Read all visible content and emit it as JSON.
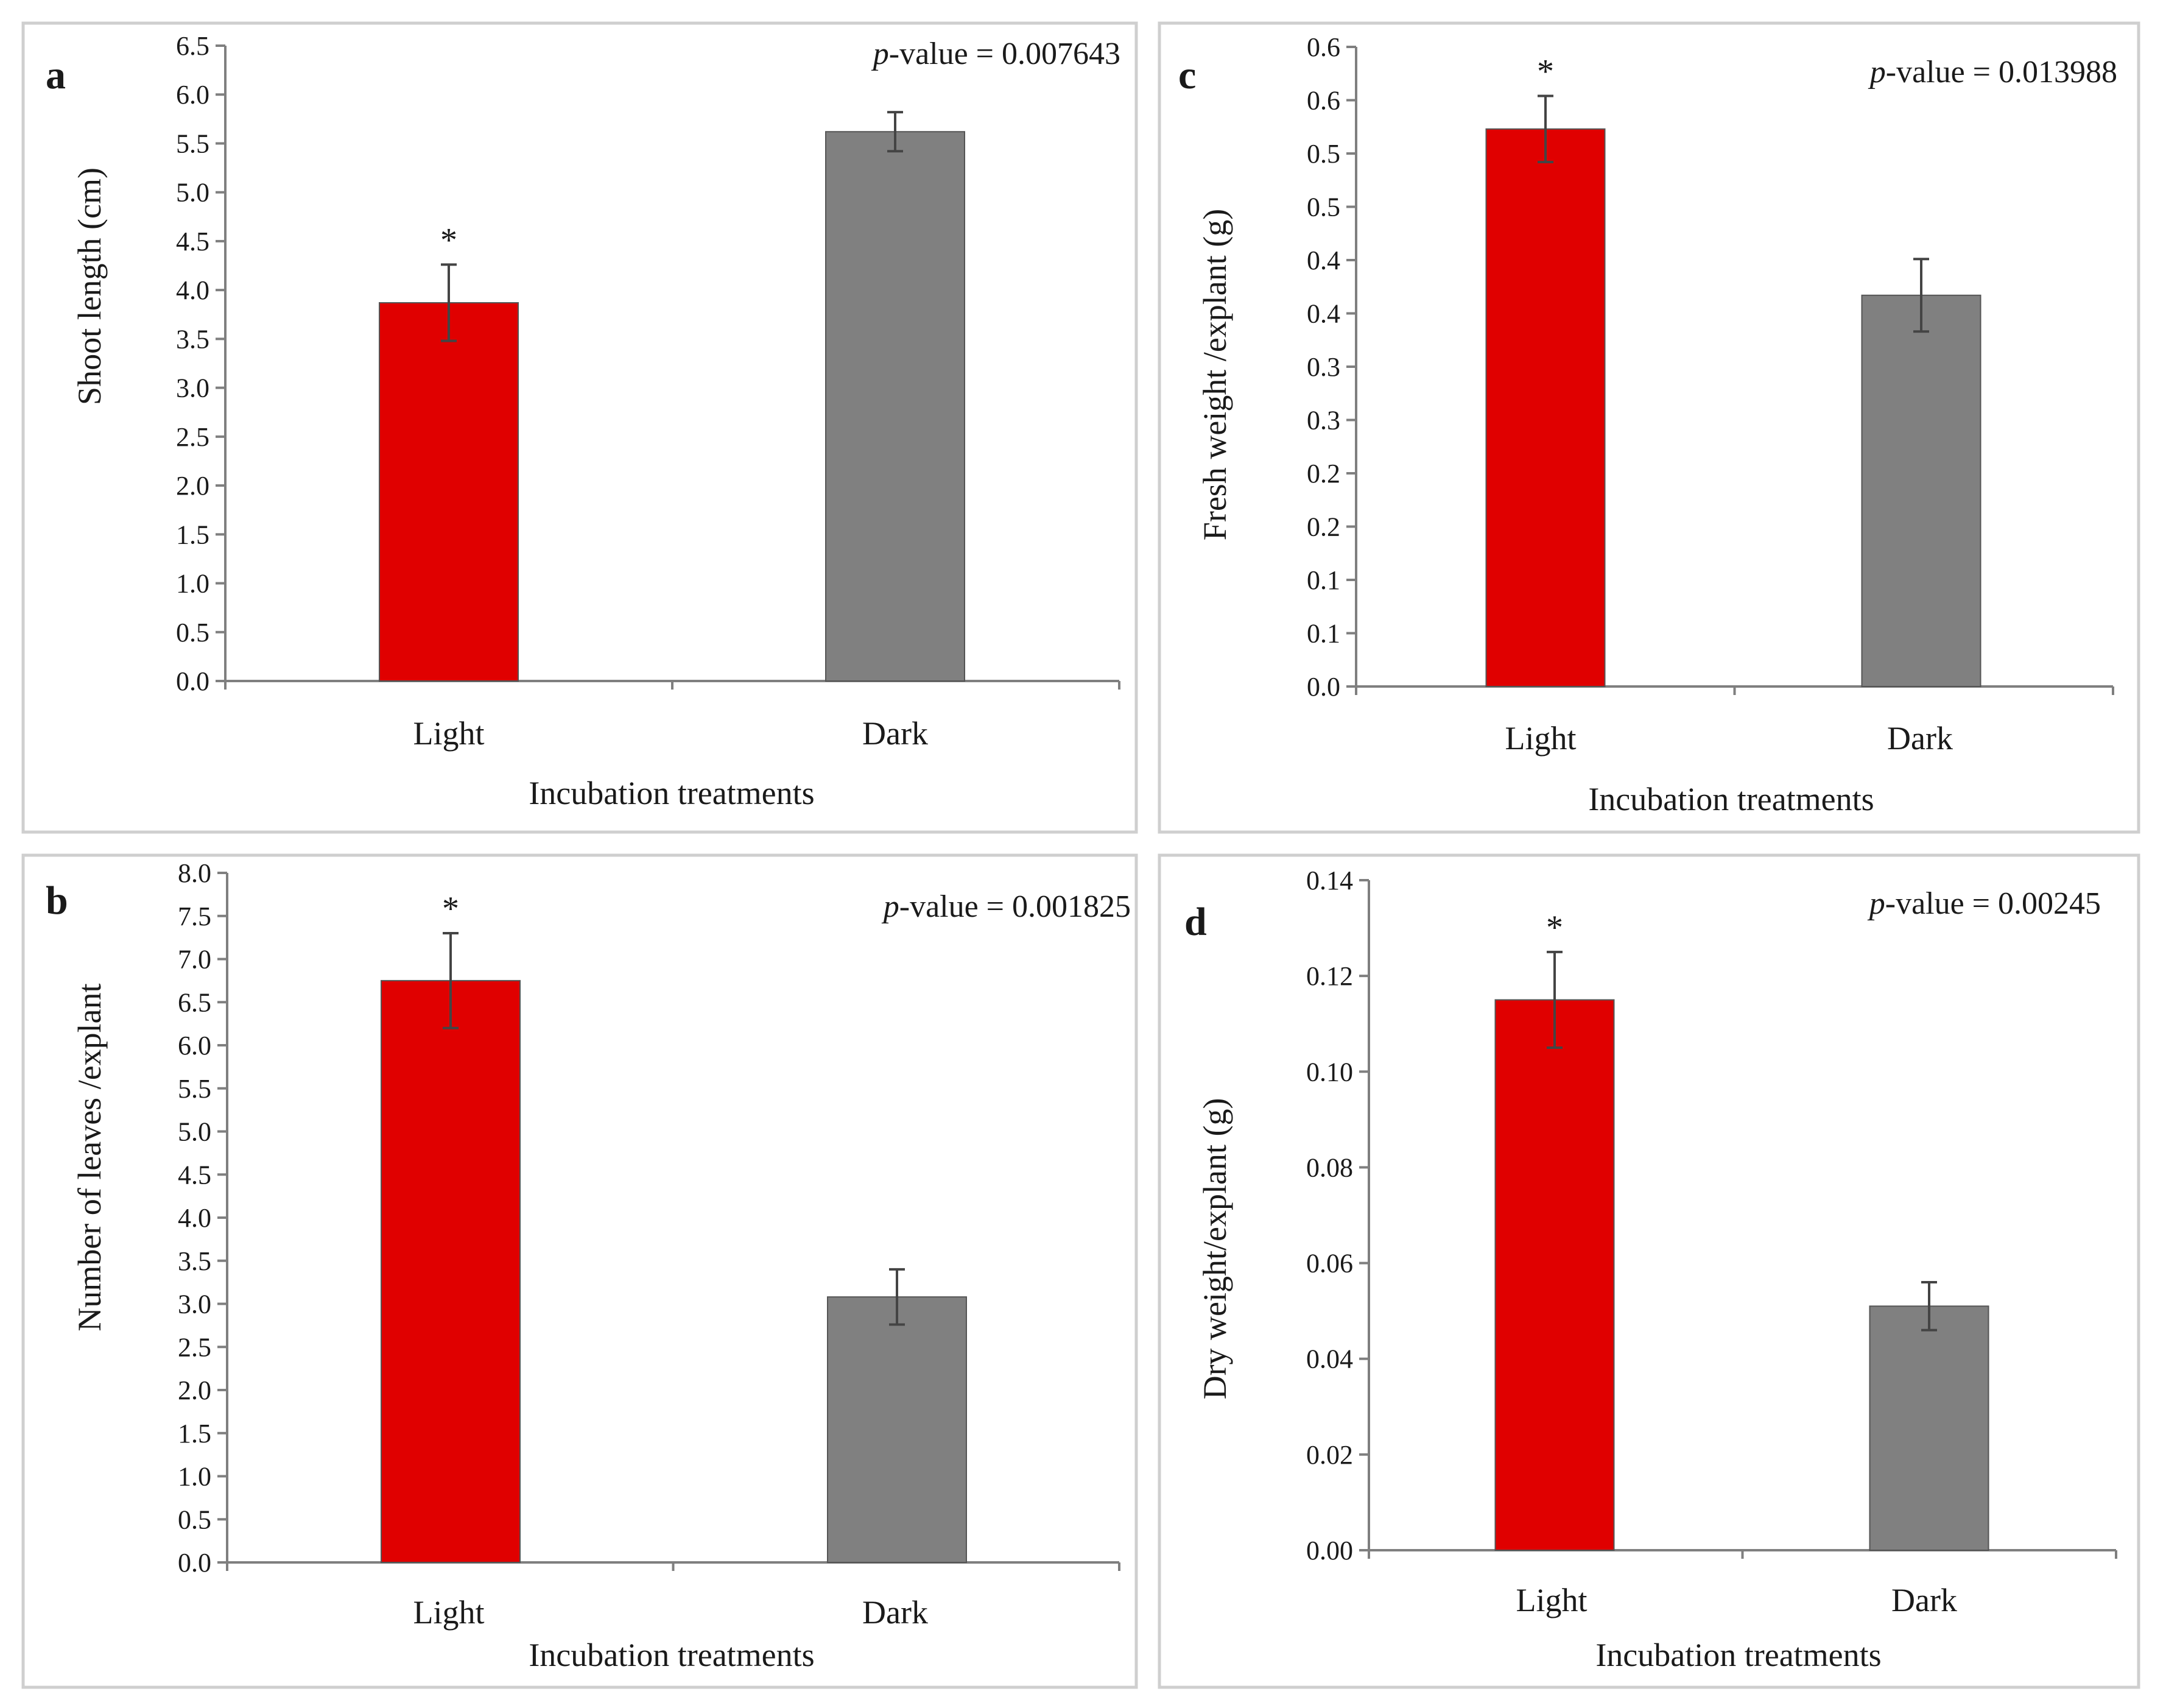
{
  "figure": {
    "border_color": "#cfcfcf",
    "axis_color": "#7f7f7f",
    "text_color": "#1a1a1a"
  },
  "chart_data": [
    {
      "id": "a",
      "panel_label": "a",
      "type": "bar",
      "categories": [
        "Light",
        "Dark"
      ],
      "values": [
        3.87,
        5.62
      ],
      "errors": [
        0.39,
        0.2
      ],
      "significance": [
        "*",
        ""
      ],
      "colors": [
        "#e00000",
        "#808080"
      ],
      "xlabel": "Incubation treatments",
      "ylabel": "Shoot length (cm)",
      "ylim": [
        0,
        6.5
      ],
      "ticks": [
        "0.0",
        "0.5",
        "1.0",
        "1.5",
        "2.0",
        "2.5",
        "3.0",
        "3.5",
        "4.0",
        "4.5",
        "5.0",
        "5.5",
        "6.0",
        "6.5"
      ],
      "pvalue_prefix": "p",
      "pvalue_rest": "-value = 0.007643"
    },
    {
      "id": "b",
      "panel_label": "b",
      "type": "bar",
      "categories": [
        "Light",
        "Dark"
      ],
      "values": [
        6.75,
        3.08
      ],
      "errors": [
        0.55,
        0.32
      ],
      "significance": [
        "*",
        ""
      ],
      "colors": [
        "#e00000",
        "#808080"
      ],
      "xlabel": "Incubation treatments",
      "ylabel": "Number of leaves /explant",
      "ylim": [
        0,
        8
      ],
      "ticks": [
        "0.0",
        "0.5",
        "1.0",
        "1.5",
        "2.0",
        "2.5",
        "3.0",
        "3.5",
        "4.0",
        "4.5",
        "5.0",
        "5.5",
        "6.0",
        "6.5",
        "7.0",
        "7.5",
        "8.0"
      ],
      "pvalue_prefix": "p",
      "pvalue_rest": "-value = 0.001825"
    },
    {
      "id": "c",
      "panel_label": "c",
      "type": "bar",
      "categories": [
        "Light",
        "Dark"
      ],
      "values": [
        0.523,
        0.367
      ],
      "errors": [
        0.031,
        0.034
      ],
      "significance": [
        "*",
        ""
      ],
      "colors": [
        "#e00000",
        "#808080"
      ],
      "xlabel": "Incubation treatments",
      "ylabel": "Fresh weight /explant (g)",
      "ylim": [
        0,
        0.6
      ],
      "ticks": [
        "0.0",
        "0.1",
        "0.1",
        "0.2",
        "0.2",
        "0.3",
        "0.3",
        "0.4",
        "0.4",
        "0.5",
        "0.5",
        "0.6",
        "0.6"
      ],
      "pvalue_prefix": "p",
      "pvalue_rest": "-value = 0.013988"
    },
    {
      "id": "d",
      "panel_label": "d",
      "type": "bar",
      "categories": [
        "Light",
        "Dark"
      ],
      "values": [
        0.115,
        0.051
      ],
      "errors": [
        0.01,
        0.005
      ],
      "significance": [
        "*",
        ""
      ],
      "colors": [
        "#e00000",
        "#808080"
      ],
      "xlabel": "Incubation treatments",
      "ylabel": "Dry weight/explant (g)",
      "ylim": [
        0,
        0.14
      ],
      "ticks": [
        "0.00",
        "0.02",
        "0.04",
        "0.06",
        "0.08",
        "0.10",
        "0.12",
        "0.14"
      ],
      "pvalue_prefix": "p",
      "pvalue_rest": "-value = 0.00245"
    }
  ]
}
